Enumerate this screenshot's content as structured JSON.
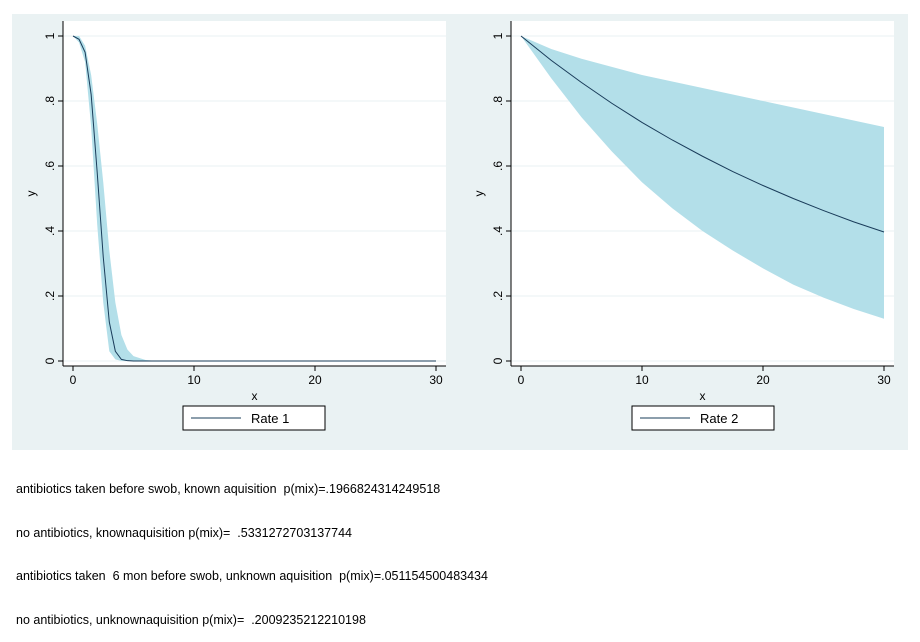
{
  "chart_data": [
    {
      "type": "area",
      "xlabel": "x",
      "ylabel": "y",
      "xlim": [
        0,
        30
      ],
      "ylim": [
        0,
        1
      ],
      "xticks": [
        "0",
        "10",
        "20",
        "30"
      ],
      "yticks": [
        "0",
        ".2",
        ".4",
        ".6",
        ".8",
        "1"
      ],
      "grid": true,
      "legend_position": "bottom",
      "legend": [
        "Rate 1"
      ],
      "series": [
        {
          "name": "Rate 1",
          "x": [
            0,
            0.5,
            1,
            1.5,
            2,
            2.5,
            3,
            3.5,
            4,
            4.5,
            5,
            6,
            7,
            8,
            10,
            15,
            20,
            25,
            30
          ],
          "y": [
            1,
            0.99,
            0.95,
            0.82,
            0.58,
            0.32,
            0.12,
            0.03,
            0.005,
            0.001,
            0,
            0,
            0,
            0,
            0,
            0,
            0,
            0,
            0
          ],
          "lower": [
            1,
            0.98,
            0.92,
            0.72,
            0.42,
            0.18,
            0.03,
            0.005,
            0,
            0,
            0,
            0,
            0,
            0,
            0,
            0,
            0,
            0,
            0
          ],
          "upper": [
            1,
            1,
            0.97,
            0.88,
            0.73,
            0.55,
            0.34,
            0.18,
            0.08,
            0.035,
            0.015,
            0.003,
            0,
            0,
            0,
            0,
            0,
            0,
            0
          ]
        }
      ]
    },
    {
      "type": "area",
      "xlabel": "x",
      "ylabel": "y",
      "xlim": [
        0,
        30
      ],
      "ylim": [
        0,
        1
      ],
      "xticks": [
        "0",
        "10",
        "20",
        "30"
      ],
      "yticks": [
        "0",
        ".2",
        ".4",
        ".6",
        ".8",
        "1"
      ],
      "grid": true,
      "legend_position": "bottom",
      "legend": [
        "Rate 2"
      ],
      "series": [
        {
          "name": "Rate 2",
          "x": [
            0,
            2.5,
            5,
            7.5,
            10,
            12.5,
            15,
            17.5,
            20,
            22.5,
            25,
            27.5,
            30
          ],
          "y": [
            1,
            0.925,
            0.857,
            0.793,
            0.734,
            0.68,
            0.63,
            0.583,
            0.54,
            0.5,
            0.463,
            0.428,
            0.397
          ],
          "lower": [
            1,
            0.87,
            0.75,
            0.645,
            0.55,
            0.47,
            0.4,
            0.34,
            0.285,
            0.235,
            0.195,
            0.16,
            0.13
          ],
          "upper": [
            1,
            0.96,
            0.93,
            0.905,
            0.88,
            0.86,
            0.84,
            0.82,
            0.8,
            0.78,
            0.76,
            0.74,
            0.72
          ]
        }
      ]
    }
  ],
  "colors": {
    "band": "#b3dfe9",
    "line": "#1a3c5a",
    "graph_region": "#eaf2f3",
    "plot": "#ffffff"
  },
  "notes": [
    "antibiotics taken before swob, known aquisition  p(mix)=.1966824314249518",
    "no antibiotics, knownaquisition p(mix)=  .5331272703137744",
    "antibiotics taken  6 mon before swob, unknown aquisition  p(mix)=.051154500483434",
    "no antibiotics, unknownaquisition p(mix)=  .2009235212210198"
  ]
}
